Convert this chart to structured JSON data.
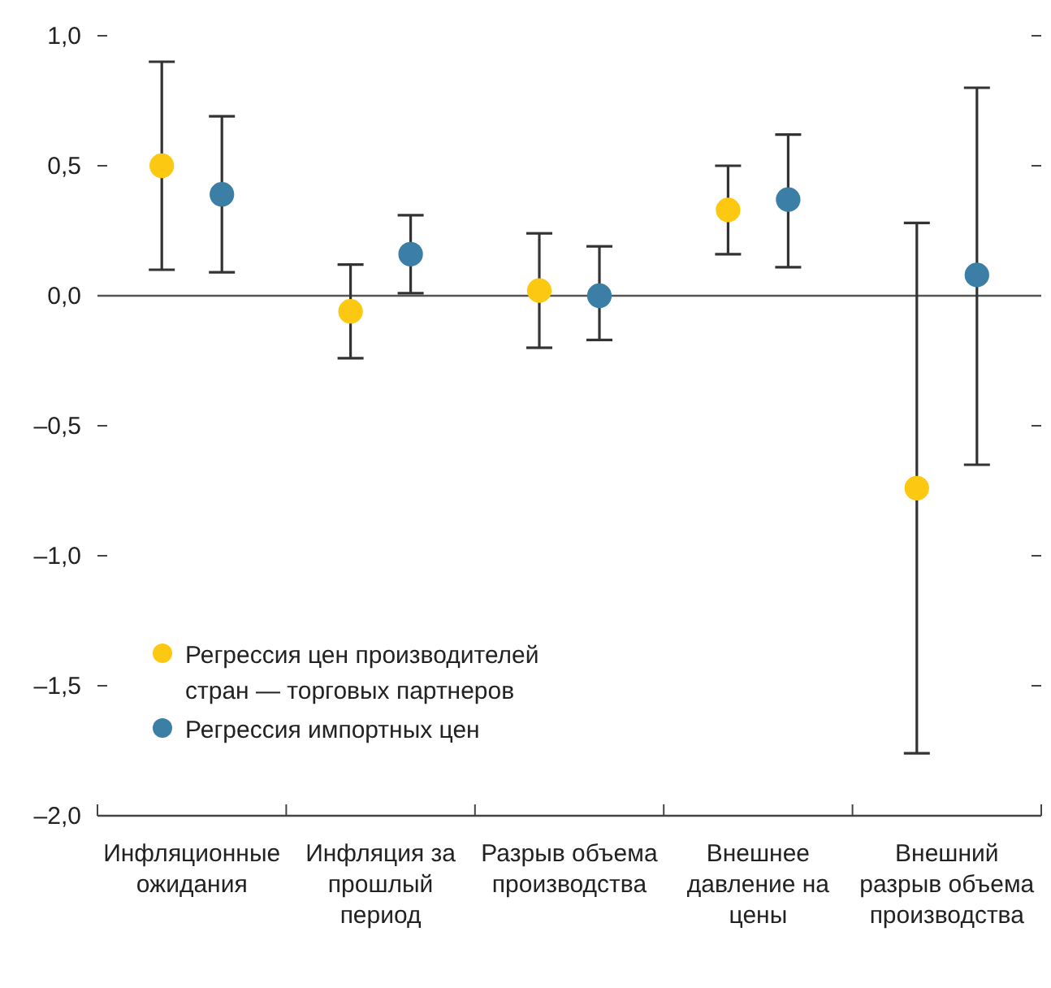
{
  "chart_data": {
    "type": "scatter",
    "categories": [
      "Инфляционные ожидания",
      "Инфляция за прошлый период",
      "Разрыв объема производства",
      "Внешнее давление на цены",
      "Внешний разрыв объема производства"
    ],
    "series": [
      {
        "name": "Регрессия цен производителей стран — торговых партнеров",
        "color": "#fcc812",
        "values": [
          0.5,
          -0.06,
          0.02,
          0.33,
          -0.74
        ],
        "errors": [
          [
            0.1,
            0.9
          ],
          [
            -0.24,
            0.12
          ],
          [
            -0.2,
            0.24
          ],
          [
            0.16,
            0.5
          ],
          [
            -1.76,
            0.28
          ]
        ]
      },
      {
        "name": "Регрессия импортных цен",
        "color": "#3b7ea6",
        "values": [
          0.39,
          0.16,
          0.0,
          0.37,
          0.08
        ],
        "errors": [
          [
            0.09,
            0.69
          ],
          [
            0.01,
            0.31
          ],
          [
            -0.17,
            0.19
          ],
          [
            0.11,
            0.62
          ],
          [
            -0.65,
            0.8
          ]
        ]
      }
    ],
    "ylim": [
      -2.0,
      1.0
    ],
    "yticks": [
      {
        "value": -2.0,
        "label": "–2,0"
      },
      {
        "value": -1.5,
        "label": "–1,5"
      },
      {
        "value": -1.0,
        "label": "–1,0"
      },
      {
        "value": -0.5,
        "label": "–0,5"
      },
      {
        "value": 0,
        "label": "0,0"
      },
      {
        "value": 0.5,
        "label": "0,5"
      },
      {
        "value": 1.0,
        "label": "1,0"
      }
    ],
    "ref_lines": [
      {
        "axis": "y",
        "value": 0,
        "color": "#555555"
      }
    ],
    "marker": "circle",
    "legend": "bottom left",
    "grid": false
  }
}
